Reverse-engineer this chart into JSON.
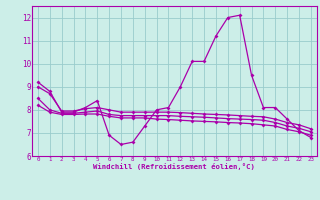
{
  "xlabel": "Windchill (Refroidissement éolien,°C)",
  "bg_color": "#cceee8",
  "line_color": "#aa00aa",
  "grid_color": "#99cccc",
  "x": [
    0,
    1,
    2,
    3,
    4,
    5,
    6,
    7,
    8,
    9,
    10,
    11,
    12,
    13,
    14,
    15,
    16,
    17,
    18,
    19,
    20,
    21,
    22,
    23
  ],
  "series1": [
    9.2,
    8.8,
    7.9,
    7.9,
    8.1,
    8.4,
    6.9,
    6.5,
    6.6,
    7.3,
    8.0,
    8.1,
    9.0,
    10.1,
    10.1,
    11.2,
    12.0,
    12.1,
    9.5,
    8.1,
    8.1,
    7.6,
    7.1,
    6.8
  ],
  "series2": [
    8.5,
    8.0,
    7.85,
    7.85,
    7.9,
    7.95,
    7.8,
    7.75,
    7.75,
    7.75,
    7.75,
    7.75,
    7.72,
    7.7,
    7.68,
    7.65,
    7.62,
    7.6,
    7.58,
    7.55,
    7.45,
    7.3,
    7.2,
    7.05
  ],
  "series3": [
    8.2,
    7.9,
    7.8,
    7.8,
    7.82,
    7.82,
    7.72,
    7.65,
    7.65,
    7.65,
    7.6,
    7.58,
    7.55,
    7.52,
    7.5,
    7.48,
    7.45,
    7.43,
    7.4,
    7.35,
    7.3,
    7.15,
    7.05,
    6.9
  ],
  "series4": [
    9.0,
    8.7,
    7.95,
    7.95,
    8.05,
    8.1,
    8.0,
    7.9,
    7.9,
    7.9,
    7.9,
    7.9,
    7.88,
    7.85,
    7.82,
    7.8,
    7.78,
    7.75,
    7.72,
    7.7,
    7.6,
    7.45,
    7.35,
    7.18
  ],
  "ylim": [
    6,
    12.5
  ],
  "xlim": [
    -0.5,
    23.5
  ],
  "yticks": [
    6,
    7,
    8,
    9,
    10,
    11,
    12
  ],
  "xtick_labels": [
    "0",
    "1",
    "2",
    "3",
    "4",
    "5",
    "6",
    "7",
    "8",
    "9",
    "10",
    "11",
    "12",
    "13",
    "14",
    "15",
    "16",
    "17",
    "18",
    "19",
    "20",
    "21",
    "22",
    "23"
  ]
}
